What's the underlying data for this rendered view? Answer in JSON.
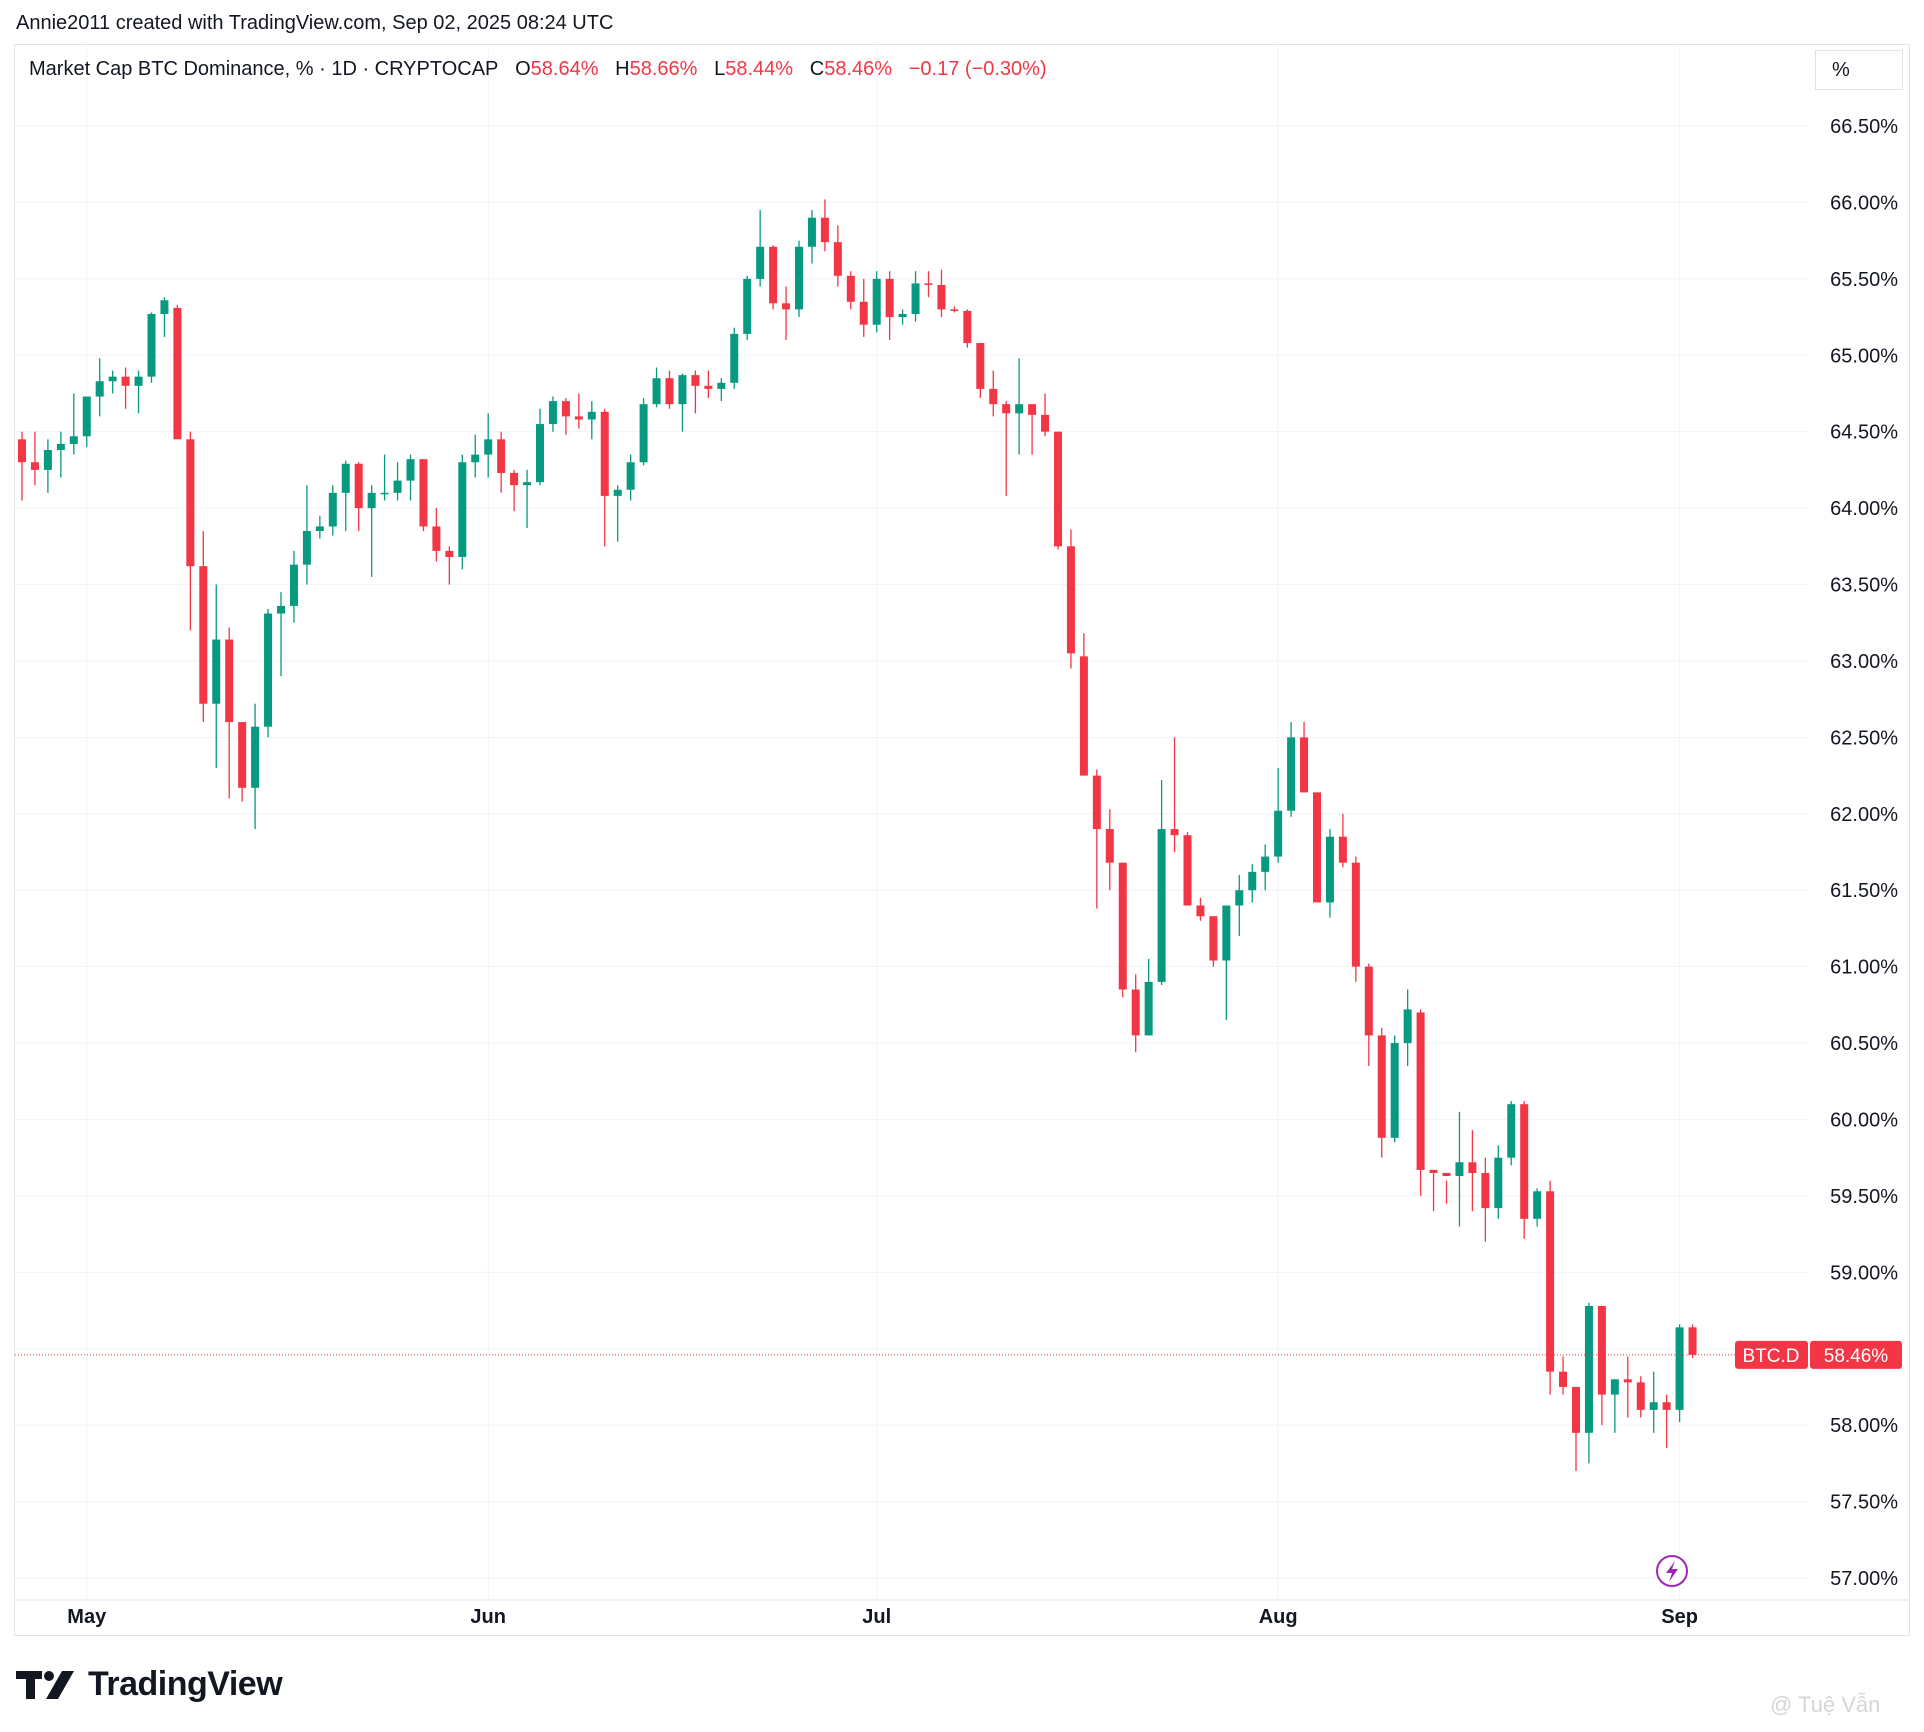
{
  "header": {
    "attribution": "Annie2011 created with TradingView.com, Sep 02, 2025 08:24 UTC"
  },
  "legend": {
    "symbol": "Market Cap BTC Dominance, % · 1D · CRYPTOCAP",
    "o_label": "O",
    "o_value": "58.64%",
    "h_label": "H",
    "h_value": "58.66%",
    "l_label": "L",
    "l_value": "58.44%",
    "c_label": "C",
    "c_value": "58.46%",
    "change": "−0.17 (−0.30%)"
  },
  "unit_button": "%",
  "price_tag": {
    "symbol": "BTC.D",
    "value": "58.46%"
  },
  "logo_text": "TradingView",
  "watermark": "@ Tuệ Vẫn",
  "colors": {
    "up": "#089981",
    "down": "#f23645",
    "grid": "#f0f3fa",
    "text": "#131722",
    "lightning": "#9c27b0"
  },
  "icons": {
    "lightning": "lightning-icon",
    "logo": "tradingview-logo-icon",
    "watermark": "watermark-icon"
  },
  "chart_data": {
    "type": "candlestick",
    "title": "Market Cap BTC Dominance, % · 1D · CRYPTOCAP",
    "ylim": [
      56.95,
      66.9
    ],
    "yticks": [
      57.0,
      57.5,
      58.0,
      58.5,
      59.0,
      59.5,
      60.0,
      60.5,
      61.0,
      61.5,
      62.0,
      62.5,
      63.0,
      63.5,
      64.0,
      64.5,
      65.0,
      65.5,
      66.0,
      66.5
    ],
    "ytick_labels": [
      "57.00%",
      "57.50%",
      "58.00%",
      "58.50%",
      "59.00%",
      "59.50%",
      "60.00%",
      "60.50%",
      "61.00%",
      "61.50%",
      "62.00%",
      "62.50%",
      "63.00%",
      "63.50%",
      "64.00%",
      "64.50%",
      "65.00%",
      "65.50%",
      "66.00%",
      "66.50%"
    ],
    "xticks": [
      {
        "label": "May",
        "index": 5
      },
      {
        "label": "Jun",
        "index": 36
      },
      {
        "label": "Jul",
        "index": 66
      },
      {
        "label": "Aug",
        "index": 97
      },
      {
        "label": "Sep",
        "index": 128
      }
    ],
    "last_price": 58.46,
    "grid": true,
    "candles": [
      {
        "o": 64.45,
        "h": 64.5,
        "l": 64.05,
        "c": 64.3
      },
      {
        "o": 64.3,
        "h": 64.5,
        "l": 64.15,
        "c": 64.25
      },
      {
        "o": 64.25,
        "h": 64.45,
        "l": 64.1,
        "c": 64.38
      },
      {
        "o": 64.38,
        "h": 64.5,
        "l": 64.2,
        "c": 64.42
      },
      {
        "o": 64.42,
        "h": 64.75,
        "l": 64.35,
        "c": 64.47
      },
      {
        "o": 64.47,
        "h": 64.72,
        "l": 64.4,
        "c": 64.73
      },
      {
        "o": 64.73,
        "h": 64.98,
        "l": 64.6,
        "c": 64.83
      },
      {
        "o": 64.83,
        "h": 64.9,
        "l": 64.75,
        "c": 64.86
      },
      {
        "o": 64.86,
        "h": 64.92,
        "l": 64.65,
        "c": 64.8
      },
      {
        "o": 64.8,
        "h": 64.9,
        "l": 64.62,
        "c": 64.86
      },
      {
        "o": 64.86,
        "h": 65.28,
        "l": 64.82,
        "c": 65.27
      },
      {
        "o": 65.27,
        "h": 65.38,
        "l": 65.12,
        "c": 65.36
      },
      {
        "o": 65.31,
        "h": 65.33,
        "l": 64.47,
        "c": 64.45
      },
      {
        "o": 64.45,
        "h": 64.5,
        "l": 63.2,
        "c": 63.62
      },
      {
        "o": 63.62,
        "h": 63.85,
        "l": 62.6,
        "c": 62.72
      },
      {
        "o": 62.72,
        "h": 63.5,
        "l": 62.3,
        "c": 63.14
      },
      {
        "o": 63.14,
        "h": 63.22,
        "l": 62.1,
        "c": 62.6
      },
      {
        "o": 62.6,
        "h": 62.55,
        "l": 62.08,
        "c": 62.17
      },
      {
        "o": 62.17,
        "h": 62.72,
        "l": 61.9,
        "c": 62.57
      },
      {
        "o": 62.57,
        "h": 63.34,
        "l": 62.5,
        "c": 63.31
      },
      {
        "o": 63.31,
        "h": 63.45,
        "l": 62.9,
        "c": 63.36
      },
      {
        "o": 63.36,
        "h": 63.72,
        "l": 63.25,
        "c": 63.63
      },
      {
        "o": 63.63,
        "h": 64.15,
        "l": 63.5,
        "c": 63.85
      },
      {
        "o": 63.85,
        "h": 63.95,
        "l": 63.8,
        "c": 63.88
      },
      {
        "o": 63.88,
        "h": 64.15,
        "l": 63.82,
        "c": 64.1
      },
      {
        "o": 64.1,
        "h": 64.31,
        "l": 63.85,
        "c": 64.29
      },
      {
        "o": 64.29,
        "h": 64.3,
        "l": 63.85,
        "c": 64.0
      },
      {
        "o": 64.0,
        "h": 64.15,
        "l": 63.55,
        "c": 64.1
      },
      {
        "o": 64.1,
        "h": 64.35,
        "l": 64.05,
        "c": 64.1
      },
      {
        "o": 64.1,
        "h": 64.3,
        "l": 64.05,
        "c": 64.18
      },
      {
        "o": 64.18,
        "h": 64.35,
        "l": 64.05,
        "c": 64.32
      },
      {
        "o": 64.32,
        "h": 64.32,
        "l": 63.85,
        "c": 63.88
      },
      {
        "o": 63.88,
        "h": 64.0,
        "l": 63.65,
        "c": 63.72
      },
      {
        "o": 63.72,
        "h": 63.75,
        "l": 63.5,
        "c": 63.68
      },
      {
        "o": 63.68,
        "h": 64.35,
        "l": 63.6,
        "c": 64.3
      },
      {
        "o": 64.3,
        "h": 64.48,
        "l": 64.2,
        "c": 64.35
      },
      {
        "o": 64.35,
        "h": 64.62,
        "l": 64.2,
        "c": 64.45
      },
      {
        "o": 64.45,
        "h": 64.5,
        "l": 64.1,
        "c": 64.23
      },
      {
        "o": 64.23,
        "h": 64.25,
        "l": 63.98,
        "c": 64.15
      },
      {
        "o": 64.15,
        "h": 64.25,
        "l": 63.87,
        "c": 64.17
      },
      {
        "o": 64.17,
        "h": 64.65,
        "l": 64.15,
        "c": 64.55
      },
      {
        "o": 64.55,
        "h": 64.73,
        "l": 64.5,
        "c": 64.7
      },
      {
        "o": 64.7,
        "h": 64.72,
        "l": 64.48,
        "c": 64.6
      },
      {
        "o": 64.6,
        "h": 64.75,
        "l": 64.52,
        "c": 64.58
      },
      {
        "o": 64.58,
        "h": 64.7,
        "l": 64.45,
        "c": 64.63
      },
      {
        "o": 64.63,
        "h": 64.65,
        "l": 63.75,
        "c": 64.08
      },
      {
        "o": 64.08,
        "h": 64.15,
        "l": 63.78,
        "c": 64.12
      },
      {
        "o": 64.12,
        "h": 64.35,
        "l": 64.05,
        "c": 64.3
      },
      {
        "o": 64.3,
        "h": 64.72,
        "l": 64.28,
        "c": 64.68
      },
      {
        "o": 64.68,
        "h": 64.92,
        "l": 64.66,
        "c": 64.85
      },
      {
        "o": 64.85,
        "h": 64.9,
        "l": 64.65,
        "c": 64.68
      },
      {
        "o": 64.68,
        "h": 64.88,
        "l": 64.5,
        "c": 64.87
      },
      {
        "o": 64.87,
        "h": 64.9,
        "l": 64.62,
        "c": 64.8
      },
      {
        "o": 64.8,
        "h": 64.9,
        "l": 64.72,
        "c": 64.78
      },
      {
        "o": 64.78,
        "h": 64.85,
        "l": 64.7,
        "c": 64.82
      },
      {
        "o": 64.82,
        "h": 65.18,
        "l": 64.78,
        "c": 65.14
      },
      {
        "o": 65.14,
        "h": 65.52,
        "l": 65.1,
        "c": 65.5
      },
      {
        "o": 65.5,
        "h": 65.95,
        "l": 65.45,
        "c": 65.71
      },
      {
        "o": 65.71,
        "h": 65.72,
        "l": 65.3,
        "c": 65.34
      },
      {
        "o": 65.34,
        "h": 65.45,
        "l": 65.1,
        "c": 65.3
      },
      {
        "o": 65.3,
        "h": 65.75,
        "l": 65.25,
        "c": 65.71
      },
      {
        "o": 65.71,
        "h": 65.95,
        "l": 65.6,
        "c": 65.9
      },
      {
        "o": 65.9,
        "h": 66.02,
        "l": 65.68,
        "c": 65.74
      },
      {
        "o": 65.74,
        "h": 65.85,
        "l": 65.45,
        "c": 65.52
      },
      {
        "o": 65.52,
        "h": 65.55,
        "l": 65.3,
        "c": 65.35
      },
      {
        "o": 65.35,
        "h": 65.5,
        "l": 65.12,
        "c": 65.2
      },
      {
        "o": 65.2,
        "h": 65.55,
        "l": 65.15,
        "c": 65.5
      },
      {
        "o": 65.5,
        "h": 65.55,
        "l": 65.1,
        "c": 65.25
      },
      {
        "o": 65.25,
        "h": 65.3,
        "l": 65.2,
        "c": 65.27
      },
      {
        "o": 65.27,
        "h": 65.55,
        "l": 65.22,
        "c": 65.47
      },
      {
        "o": 65.47,
        "h": 65.55,
        "l": 65.38,
        "c": 65.46
      },
      {
        "o": 65.46,
        "h": 65.56,
        "l": 65.25,
        "c": 65.3
      },
      {
        "o": 65.3,
        "h": 65.32,
        "l": 65.28,
        "c": 65.29
      },
      {
        "o": 65.29,
        "h": 65.3,
        "l": 65.05,
        "c": 65.08
      },
      {
        "o": 65.08,
        "h": 65.05,
        "l": 64.72,
        "c": 64.78
      },
      {
        "o": 64.78,
        "h": 64.9,
        "l": 64.6,
        "c": 64.68
      },
      {
        "o": 64.68,
        "h": 64.7,
        "l": 64.08,
        "c": 64.62
      },
      {
        "o": 64.62,
        "h": 64.98,
        "l": 64.35,
        "c": 64.68
      },
      {
        "o": 64.68,
        "h": 64.68,
        "l": 64.35,
        "c": 64.61
      },
      {
        "o": 64.61,
        "h": 64.75,
        "l": 64.47,
        "c": 64.5
      },
      {
        "o": 64.5,
        "h": 64.5,
        "l": 63.73,
        "c": 63.75
      },
      {
        "o": 63.75,
        "h": 63.86,
        "l": 62.95,
        "c": 63.05
      },
      {
        "o": 63.03,
        "h": 63.18,
        "l": 62.25,
        "c": 62.25
      },
      {
        "o": 62.25,
        "h": 62.29,
        "l": 61.38,
        "c": 61.9
      },
      {
        "o": 61.9,
        "h": 62.03,
        "l": 61.5,
        "c": 61.68
      },
      {
        "o": 61.68,
        "h": 61.68,
        "l": 60.8,
        "c": 60.85
      },
      {
        "o": 60.85,
        "h": 60.95,
        "l": 60.44,
        "c": 60.55
      },
      {
        "o": 60.55,
        "h": 61.05,
        "l": 60.55,
        "c": 60.9
      },
      {
        "o": 60.9,
        "h": 62.22,
        "l": 60.88,
        "c": 61.9
      },
      {
        "o": 61.9,
        "h": 62.5,
        "l": 61.75,
        "c": 61.86
      },
      {
        "o": 61.86,
        "h": 61.88,
        "l": 61.4,
        "c": 61.4
      },
      {
        "o": 61.4,
        "h": 61.45,
        "l": 61.3,
        "c": 61.33
      },
      {
        "o": 61.33,
        "h": 61.33,
        "l": 61.0,
        "c": 61.04
      },
      {
        "o": 61.04,
        "h": 61.4,
        "l": 60.65,
        "c": 61.4
      },
      {
        "o": 61.4,
        "h": 61.6,
        "l": 61.2,
        "c": 61.5
      },
      {
        "o": 61.5,
        "h": 61.67,
        "l": 61.42,
        "c": 61.62
      },
      {
        "o": 61.62,
        "h": 61.8,
        "l": 61.5,
        "c": 61.72
      },
      {
        "o": 61.72,
        "h": 62.3,
        "l": 61.68,
        "c": 62.02
      },
      {
        "o": 62.02,
        "h": 62.6,
        "l": 61.98,
        "c": 62.5
      },
      {
        "o": 62.5,
        "h": 62.6,
        "l": 62.15,
        "c": 62.14
      },
      {
        "o": 62.14,
        "h": 62.14,
        "l": 61.42,
        "c": 61.42
      },
      {
        "o": 61.42,
        "h": 61.9,
        "l": 61.32,
        "c": 61.85
      },
      {
        "o": 61.85,
        "h": 62.0,
        "l": 61.65,
        "c": 61.68
      },
      {
        "o": 61.68,
        "h": 61.72,
        "l": 60.9,
        "c": 61.0
      },
      {
        "o": 61.0,
        "h": 61.02,
        "l": 60.35,
        "c": 60.55
      },
      {
        "o": 60.55,
        "h": 60.6,
        "l": 59.75,
        "c": 59.88
      },
      {
        "o": 59.88,
        "h": 60.55,
        "l": 59.85,
        "c": 60.5
      },
      {
        "o": 60.5,
        "h": 60.85,
        "l": 60.35,
        "c": 60.72
      },
      {
        "o": 60.7,
        "h": 60.72,
        "l": 59.5,
        "c": 59.67
      },
      {
        "o": 59.67,
        "h": 59.65,
        "l": 59.4,
        "c": 59.65
      },
      {
        "o": 59.65,
        "h": 59.6,
        "l": 59.45,
        "c": 59.63
      },
      {
        "o": 59.63,
        "h": 60.05,
        "l": 59.3,
        "c": 59.72
      },
      {
        "o": 59.72,
        "h": 59.93,
        "l": 59.4,
        "c": 59.65
      },
      {
        "o": 59.65,
        "h": 59.75,
        "l": 59.2,
        "c": 59.42
      },
      {
        "o": 59.42,
        "h": 59.83,
        "l": 59.35,
        "c": 59.75
      },
      {
        "o": 59.75,
        "h": 60.12,
        "l": 59.7,
        "c": 60.1
      },
      {
        "o": 60.1,
        "h": 60.12,
        "l": 59.22,
        "c": 59.35
      },
      {
        "o": 59.35,
        "h": 59.55,
        "l": 59.3,
        "c": 59.53
      },
      {
        "o": 59.53,
        "h": 59.6,
        "l": 58.2,
        "c": 58.35
      },
      {
        "o": 58.35,
        "h": 58.45,
        "l": 58.2,
        "c": 58.25
      },
      {
        "o": 58.25,
        "h": 58.25,
        "l": 57.7,
        "c": 57.95
      },
      {
        "o": 57.95,
        "h": 58.8,
        "l": 57.75,
        "c": 58.78
      },
      {
        "o": 58.78,
        "h": 58.78,
        "l": 58.0,
        "c": 58.2
      },
      {
        "o": 58.2,
        "h": 58.3,
        "l": 57.95,
        "c": 58.3
      },
      {
        "o": 58.3,
        "h": 58.45,
        "l": 58.05,
        "c": 58.28
      },
      {
        "o": 58.28,
        "h": 58.32,
        "l": 58.05,
        "c": 58.1
      },
      {
        "o": 58.1,
        "h": 58.35,
        "l": 57.95,
        "c": 58.15
      },
      {
        "o": 58.15,
        "h": 58.2,
        "l": 57.85,
        "c": 58.1
      },
      {
        "o": 58.1,
        "h": 58.66,
        "l": 58.02,
        "c": 58.64
      },
      {
        "o": 58.64,
        "h": 58.66,
        "l": 58.44,
        "c": 58.46
      }
    ]
  }
}
